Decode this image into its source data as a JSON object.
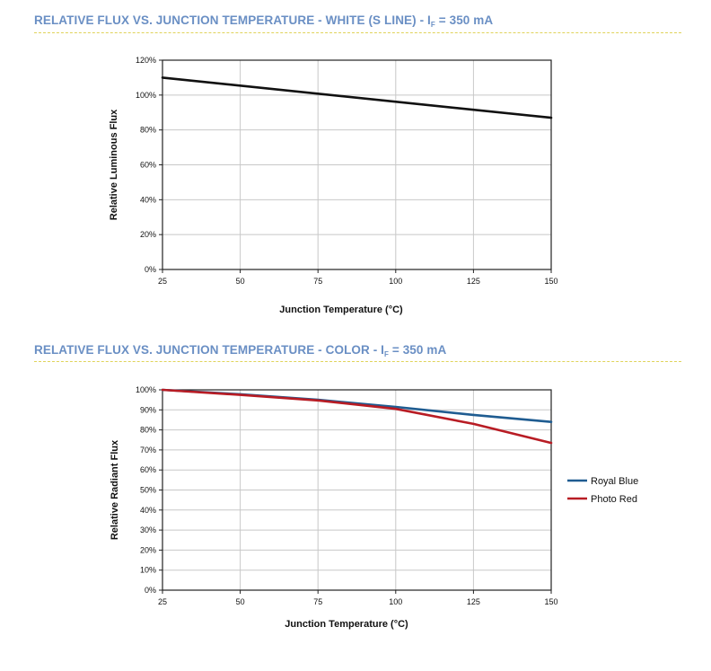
{
  "headers": {
    "white": {
      "prefix": "RELATIVE FLUX VS. JUNCTION TEMPERATURE - WHITE (S LINE) - I",
      "sub": "F",
      "suffix": " = 350 mA"
    },
    "color": {
      "prefix": "RELATIVE FLUX VS. JUNCTION TEMPERATURE - COLOR - I",
      "sub": "F",
      "suffix": " = 350 mA"
    }
  },
  "chart_data": [
    {
      "type": "line",
      "title": "RELATIVE FLUX VS. JUNCTION TEMPERATURE - WHITE (S LINE) - IF = 350 mA",
      "xlabel": "Junction Temperature (°C)",
      "ylabel": "Relative Luminous Flux",
      "xlim": [
        25,
        150
      ],
      "ylim": [
        0,
        120
      ],
      "x_ticks": [
        "25",
        "50",
        "75",
        "100",
        "125",
        "150"
      ],
      "y_ticks": [
        "0%",
        "20%",
        "40%",
        "60%",
        "80%",
        "100%",
        "120%"
      ],
      "grid": true,
      "series": [
        {
          "color": "#111111",
          "points": [
            [
              25,
              110
            ],
            [
              150,
              87
            ]
          ]
        }
      ]
    },
    {
      "type": "line",
      "title": "RELATIVE FLUX VS. JUNCTION TEMPERATURE - COLOR - IF = 350 mA",
      "xlabel": "Junction Temperature (°C)",
      "ylabel": "Relative Radiant Flux",
      "xlim": [
        25,
        150
      ],
      "ylim": [
        0,
        100
      ],
      "x_ticks": [
        "25",
        "50",
        "75",
        "100",
        "125",
        "150"
      ],
      "y_ticks": [
        "0%",
        "10%",
        "20%",
        "30%",
        "40%",
        "50%",
        "60%",
        "70%",
        "80%",
        "90%",
        "100%"
      ],
      "grid": true,
      "legend": "right",
      "series": [
        {
          "name": "Royal Blue",
          "color": "#1f5c91",
          "points": [
            [
              25,
              100
            ],
            [
              50,
              97.8
            ],
            [
              75,
              95
            ],
            [
              100,
              91.5
            ],
            [
              125,
              87.5
            ],
            [
              150,
              84
            ]
          ]
        },
        {
          "name": "Photo Red",
          "color": "#b81c24",
          "points": [
            [
              25,
              100
            ],
            [
              50,
              97.5
            ],
            [
              75,
              94.7
            ],
            [
              100,
              90.5
            ],
            [
              125,
              83
            ],
            [
              150,
              73.5
            ]
          ]
        }
      ]
    }
  ]
}
